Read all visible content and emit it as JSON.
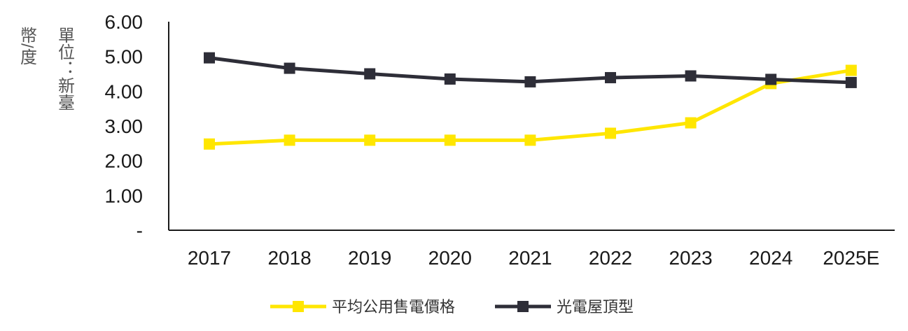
{
  "chart_data": {
    "type": "line",
    "title": "",
    "xlabel": "",
    "ylabel_lines": [
      "單位：新臺",
      "幣/度"
    ],
    "categories": [
      "2017",
      "2018",
      "2019",
      "2020",
      "2021",
      "2022",
      "2023",
      "2024",
      "2025E"
    ],
    "y_tick_labels": [
      "-",
      "1.00",
      "2.00",
      "3.00",
      "4.00",
      "5.00",
      "6.00"
    ],
    "ylim": [
      0,
      6
    ],
    "grid": false,
    "legend_position": "bottom",
    "series": [
      {
        "name": "平均公用售電價格",
        "color": "#ffe600",
        "values": [
          2.48,
          2.59,
          2.59,
          2.59,
          2.59,
          2.79,
          3.09,
          4.22,
          4.6
        ]
      },
      {
        "name": "光電屋頂型",
        "color": "#2e2e38",
        "values": [
          4.96,
          4.66,
          4.5,
          4.35,
          4.27,
          4.39,
          4.44,
          4.34,
          4.25
        ]
      }
    ]
  }
}
